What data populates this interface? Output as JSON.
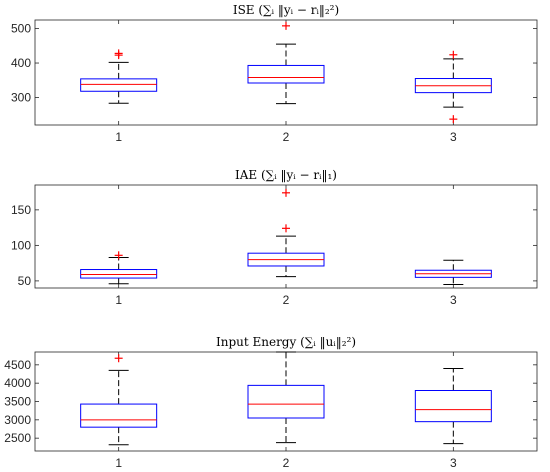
{
  "colors": {
    "box": "#0000ff",
    "median": "#ff0000",
    "outlier": "#ff0000",
    "whisker": "#000000",
    "axis": "#262626"
  },
  "chart_data": [
    {
      "type": "box",
      "title": "ISE (∑ᵢ ‖yᵢ − rᵢ‖₂²)",
      "categories": [
        "1",
        "2",
        "3"
      ],
      "ylim": [
        220,
        525
      ],
      "yticks": [
        300,
        400,
        500
      ],
      "boxes": [
        {
          "whisker_low": 283,
          "q1": 318,
          "median": 338,
          "q3": 354,
          "whisker_high": 402,
          "outliers": [
            423,
            428
          ]
        },
        {
          "whisker_low": 282,
          "q1": 342,
          "median": 358,
          "q3": 393,
          "whisker_high": 455,
          "outliers": [
            508
          ]
        },
        {
          "whisker_low": 272,
          "q1": 314,
          "median": 334,
          "q3": 355,
          "whisker_high": 412,
          "outliers": [
            424,
            237
          ]
        }
      ],
      "grid": false
    },
    {
      "type": "box",
      "title": "IAE (∑ᵢ ‖yᵢ − rᵢ‖₁)",
      "categories": [
        "1",
        "2",
        "3"
      ],
      "ylim": [
        40,
        185
      ],
      "yticks": [
        50,
        100,
        150
      ],
      "boxes": [
        {
          "whisker_low": 46,
          "q1": 54,
          "median": 59,
          "q3": 66,
          "whisker_high": 83,
          "outliers": [
            86
          ]
        },
        {
          "whisker_low": 56,
          "q1": 71,
          "median": 80,
          "q3": 89,
          "whisker_high": 113,
          "outliers": [
            124,
            174
          ]
        },
        {
          "whisker_low": 45,
          "q1": 55,
          "median": 60,
          "q3": 65,
          "whisker_high": 79,
          "outliers": []
        }
      ],
      "grid": false
    },
    {
      "type": "box",
      "title": "Input Energy (∑ᵢ ‖uᵢ‖₂²)",
      "categories": [
        "1",
        "2",
        "3"
      ],
      "ylim": [
        2150,
        4850
      ],
      "yticks": [
        2500,
        3000,
        3500,
        4000,
        4500
      ],
      "boxes": [
        {
          "whisker_low": 2320,
          "q1": 2800,
          "median": 3000,
          "q3": 3430,
          "whisker_high": 4350,
          "outliers": [
            4680
          ]
        },
        {
          "whisker_low": 2380,
          "q1": 3050,
          "median": 3430,
          "q3": 3940,
          "whisker_high": 4850,
          "outliers": []
        },
        {
          "whisker_low": 2350,
          "q1": 2950,
          "median": 3280,
          "q3": 3800,
          "whisker_high": 4400,
          "outliers": []
        }
      ],
      "grid": false
    }
  ]
}
